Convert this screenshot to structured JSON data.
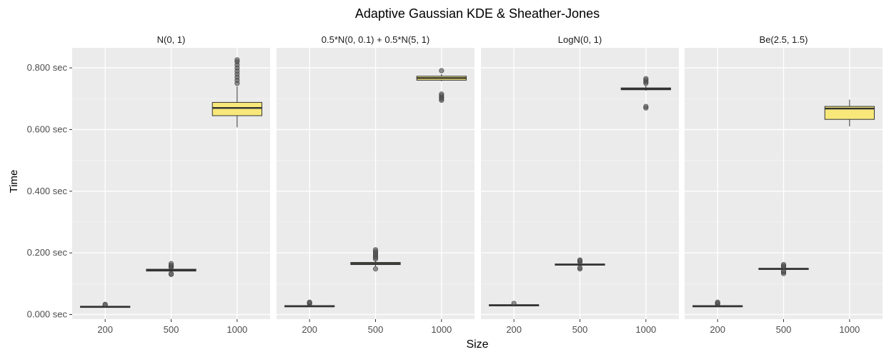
{
  "title": "Adaptive Gaussian KDE & Sheather-Jones",
  "xlabel": "Size",
  "ylabel": "Time",
  "colors": {
    "panel_bg": "#EBEBEB",
    "grid_major": "#FFFFFF",
    "box_fill": "#F8E87A",
    "box_fill_light": "#F4F0D0",
    "box_line": "#333333",
    "text_dark": "#000000",
    "text_axis": "#4D4D4D"
  },
  "chart_data": {
    "type": "box",
    "facet_wrap": "distribution",
    "categories": [
      "200",
      "500",
      "1000"
    ],
    "ylim": [
      -0.015,
      0.865
    ],
    "yticks": [
      {
        "value": 0.0,
        "label": "0.000 sec"
      },
      {
        "value": 0.2,
        "label": "0.200 sec"
      },
      {
        "value": 0.4,
        "label": "0.400 sec"
      },
      {
        "value": 0.6,
        "label": "0.600 sec"
      },
      {
        "value": 0.8,
        "label": "0.800 sec"
      }
    ],
    "grid": true,
    "panels": [
      {
        "label": "N(0, 1)",
        "boxes": [
          {
            "category": "200",
            "q1": 0.023,
            "median": 0.025,
            "q3": 0.027,
            "whisker_low": 0.022,
            "whisker_high": 0.029,
            "outliers": [
              0.031,
              0.033
            ]
          },
          {
            "category": "500",
            "q1": 0.141,
            "median": 0.144,
            "q3": 0.147,
            "whisker_low": 0.138,
            "whisker_high": 0.15,
            "outliers": [
              0.13,
              0.133,
              0.153,
              0.156,
              0.16,
              0.165
            ]
          },
          {
            "category": "1000",
            "q1": 0.645,
            "median": 0.67,
            "q3": 0.688,
            "whisker_low": 0.607,
            "whisker_high": 0.74,
            "outliers": [
              0.75,
              0.76,
              0.77,
              0.78,
              0.79,
              0.8,
              0.81,
              0.82,
              0.826
            ]
          }
        ]
      },
      {
        "label": "0.5*N(0, 0.1) + 0.5*N(5, 1)",
        "boxes": [
          {
            "category": "200",
            "q1": 0.025,
            "median": 0.027,
            "q3": 0.029,
            "whisker_low": 0.024,
            "whisker_high": 0.031,
            "outliers": [
              0.035,
              0.038,
              0.04
            ]
          },
          {
            "category": "500",
            "q1": 0.162,
            "median": 0.165,
            "q3": 0.169,
            "whisker_low": 0.156,
            "whisker_high": 0.175,
            "outliers": [
              0.148,
              0.18,
              0.185,
              0.19,
              0.195,
              0.2,
              0.205,
              0.21
            ]
          },
          {
            "category": "1000",
            "q1": 0.76,
            "median": 0.767,
            "q3": 0.773,
            "whisker_low": 0.757,
            "whisker_high": 0.78,
            "outliers": [
              0.695,
              0.7,
              0.705,
              0.71,
              0.715,
              0.791
            ]
          }
        ]
      },
      {
        "label": "LogN(0, 1)",
        "boxes": [
          {
            "category": "200",
            "q1": 0.028,
            "median": 0.03,
            "q3": 0.032,
            "whisker_low": 0.026,
            "whisker_high": 0.034,
            "outliers": [
              0.036
            ]
          },
          {
            "category": "500",
            "q1": 0.16,
            "median": 0.162,
            "q3": 0.164,
            "whisker_low": 0.157,
            "whisker_high": 0.167,
            "outliers": [
              0.148,
              0.152,
              0.17,
              0.174,
              0.177
            ]
          },
          {
            "category": "1000",
            "q1": 0.729,
            "median": 0.732,
            "q3": 0.735,
            "whisker_low": 0.726,
            "whisker_high": 0.742,
            "outliers": [
              0.67,
              0.675,
              0.75,
              0.755,
              0.76,
              0.765
            ]
          }
        ]
      },
      {
        "label": "Be(2.5, 1.5)",
        "boxes": [
          {
            "category": "200",
            "q1": 0.025,
            "median": 0.027,
            "q3": 0.029,
            "whisker_low": 0.024,
            "whisker_high": 0.031,
            "outliers": [
              0.034,
              0.037,
              0.04
            ]
          },
          {
            "category": "500",
            "q1": 0.146,
            "median": 0.148,
            "q3": 0.15,
            "whisker_low": 0.144,
            "whisker_high": 0.152,
            "outliers": [
              0.133,
              0.138,
              0.142,
              0.155,
              0.158,
              0.162
            ]
          },
          {
            "category": "1000",
            "q1": 0.633,
            "median": 0.668,
            "q3": 0.675,
            "whisker_low": 0.61,
            "whisker_high": 0.697,
            "outliers": []
          }
        ]
      }
    ]
  }
}
